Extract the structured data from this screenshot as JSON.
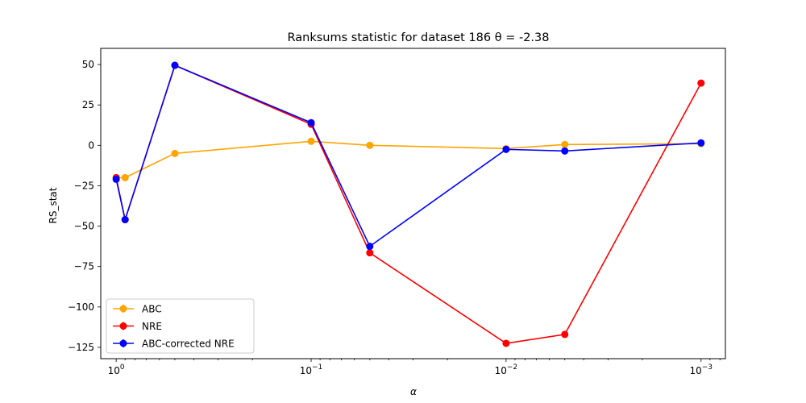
{
  "chart_data": {
    "type": "line",
    "title": "Ranksums statistic for dataset 186 θ =  -2.38",
    "xlabel": "α",
    "ylabel": "RS_stat",
    "x_scale": "log",
    "x_reversed": true,
    "xlim": [
      1.2,
      0.00075
    ],
    "ylim": [
      -132,
      60
    ],
    "x": [
      1.0,
      0.9,
      0.5,
      0.1,
      0.05,
      0.01,
      0.005,
      0.001
    ],
    "x_ticks": [
      {
        "value": 1,
        "label": "10",
        "exp": "0"
      },
      {
        "value": 0.1,
        "label": "10",
        "exp": "−1"
      },
      {
        "value": 0.01,
        "label": "10",
        "exp": "−2"
      },
      {
        "value": 0.001,
        "label": "10",
        "exp": "−3"
      }
    ],
    "y_ticks": [
      {
        "value": 50,
        "label": "50"
      },
      {
        "value": 25,
        "label": "25"
      },
      {
        "value": 0,
        "label": "0"
      },
      {
        "value": -25,
        "label": "−25"
      },
      {
        "value": -50,
        "label": "−50"
      },
      {
        "value": -75,
        "label": "−75"
      },
      {
        "value": -100,
        "label": "−100"
      },
      {
        "value": -125,
        "label": "−125"
      }
    ],
    "series": [
      {
        "name": "ABC",
        "color": "#ffa500",
        "values": [
          -20,
          -20,
          -5,
          2.5,
          0,
          -2,
          0.5,
          1
        ]
      },
      {
        "name": "NRE",
        "color": "#ff0000",
        "values": [
          -20,
          -46,
          49.5,
          13,
          -66.5,
          -122.5,
          -117,
          38.5
        ]
      },
      {
        "name": "ABC-corrected NRE",
        "color": "#0000ff",
        "values": [
          -21,
          -46,
          49.5,
          14,
          -62.5,
          -2.5,
          -3.5,
          1.5
        ]
      }
    ],
    "legend_position": "lower-left",
    "grid": false
  }
}
